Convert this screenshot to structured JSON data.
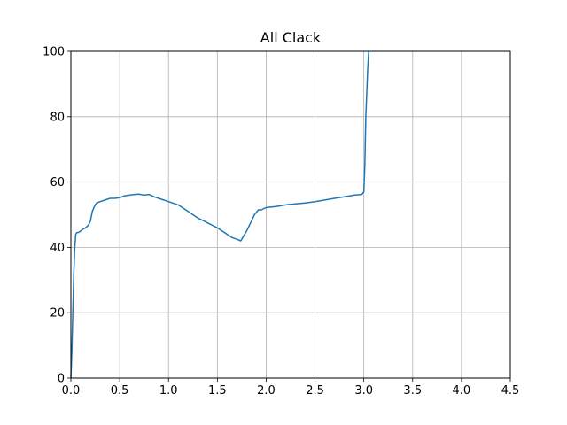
{
  "chart_data": {
    "type": "line",
    "title": "All Clack",
    "xlabel": "",
    "ylabel": "",
    "xlim": [
      0.0,
      4.5
    ],
    "ylim": [
      0,
      100
    ],
    "grid": true,
    "x_ticks": [
      0.0,
      0.5,
      1.0,
      1.5,
      2.0,
      2.5,
      3.0,
      3.5,
      4.0,
      4.5
    ],
    "x_tick_labels": [
      "0.0",
      "0.5",
      "1.0",
      "1.5",
      "2.0",
      "2.5",
      "3.0",
      "3.5",
      "4.0",
      "4.5"
    ],
    "y_ticks": [
      0,
      20,
      40,
      60,
      80,
      100
    ],
    "y_tick_labels": [
      "0",
      "20",
      "40",
      "60",
      "80",
      "100"
    ],
    "series": [
      {
        "color": "#1f77b4",
        "x": [
          0.0,
          0.01,
          0.02,
          0.03,
          0.04,
          0.05,
          0.06,
          0.08,
          0.1,
          0.12,
          0.15,
          0.18,
          0.2,
          0.22,
          0.24,
          0.26,
          0.3,
          0.35,
          0.4,
          0.45,
          0.5,
          0.55,
          0.6,
          0.65,
          0.7,
          0.75,
          0.8,
          0.85,
          0.9,
          1.0,
          1.1,
          1.2,
          1.3,
          1.4,
          1.5,
          1.6,
          1.65,
          1.7,
          1.74,
          1.76,
          1.8,
          1.84,
          1.88,
          1.92,
          1.95,
          2.0,
          2.1,
          2.2,
          2.3,
          2.4,
          2.5,
          2.6,
          2.7,
          2.8,
          2.9,
          2.98,
          3.0,
          3.01,
          3.02,
          3.04,
          3.05
        ],
        "y": [
          0,
          8,
          20,
          32,
          40,
          44,
          44.5,
          44.6,
          45,
          45.5,
          46,
          46.8,
          48,
          51,
          52.5,
          53.5,
          54,
          54.5,
          55,
          55,
          55.2,
          55.8,
          56,
          56.2,
          56.3,
          56,
          56.2,
          55.5,
          55,
          54,
          53,
          51,
          49,
          47.5,
          46,
          44,
          43,
          42.5,
          42,
          43,
          45,
          47.5,
          50,
          51.5,
          51.5,
          52.2,
          52.5,
          53,
          53.3,
          53.6,
          54,
          54.5,
          55,
          55.5,
          56,
          56.2,
          57,
          65,
          80,
          95,
          100
        ]
      }
    ]
  }
}
